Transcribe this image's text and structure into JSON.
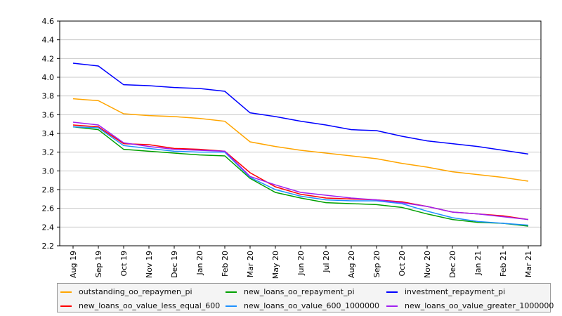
{
  "chart_data": {
    "type": "line",
    "title": "",
    "xlabel": "",
    "ylabel": "",
    "ylim": [
      2.2,
      4.6
    ],
    "yticks": [
      "2.2",
      "2.4",
      "2.6",
      "2.8",
      "3.0",
      "3.2",
      "3.4",
      "3.6",
      "3.8",
      "4.0",
      "4.2",
      "4.4",
      "4.6"
    ],
    "grid": true,
    "legend_position": "bottom",
    "categories": [
      "Aug 19",
      "Sep 19",
      "Oct 19",
      "Nov 19",
      "Dec 19",
      "Jan 20",
      "Feb 20",
      "Mar 20",
      "May 20",
      "Jun 20",
      "Jul 20",
      "Aug 20",
      "Sep 20",
      "Oct 20",
      "Nov 20",
      "Dec 20",
      "Jan 21",
      "Feb 21",
      "Mar 21"
    ],
    "series": [
      {
        "name": "outstanding_oo_repaymen_pi",
        "color": "#ffa500",
        "values": [
          3.77,
          3.75,
          3.61,
          3.59,
          3.58,
          3.56,
          3.53,
          3.31,
          3.26,
          3.22,
          3.19,
          3.16,
          3.13,
          3.08,
          3.04,
          2.99,
          2.96,
          2.93,
          2.89
        ]
      },
      {
        "name": "new_loans_oo_repayment_pi",
        "color": "#00a000",
        "values": [
          3.47,
          3.44,
          3.23,
          3.21,
          3.19,
          3.17,
          3.16,
          2.92,
          2.77,
          2.71,
          2.66,
          2.65,
          2.64,
          2.61,
          2.54,
          2.48,
          2.45,
          2.44,
          2.41
        ]
      },
      {
        "name": "investment_repayment_pi",
        "color": "#0000ff",
        "values": [
          4.15,
          4.12,
          3.92,
          3.91,
          3.89,
          3.88,
          3.85,
          3.62,
          3.58,
          3.53,
          3.49,
          3.44,
          3.43,
          3.37,
          3.32,
          3.29,
          3.26,
          3.22,
          3.18
        ]
      },
      {
        "name": "new_loans_oo_value_less_equal_600",
        "color": "#ff0000",
        "values": [
          3.49,
          3.47,
          3.29,
          3.28,
          3.24,
          3.23,
          3.21,
          2.98,
          2.83,
          2.75,
          2.71,
          2.7,
          2.69,
          2.67,
          2.62,
          2.56,
          2.54,
          2.52,
          2.48
        ]
      },
      {
        "name": "new_loans_oo_value_600_1000000",
        "color": "#1e90ff",
        "values": [
          3.47,
          3.46,
          3.27,
          3.24,
          3.21,
          3.2,
          3.2,
          2.93,
          2.8,
          2.73,
          2.69,
          2.68,
          2.68,
          2.65,
          2.57,
          2.5,
          2.46,
          2.44,
          2.42
        ]
      },
      {
        "name": "new_loans_oo_value_greater_1000000",
        "color": "#a020f0",
        "values": [
          3.52,
          3.49,
          3.3,
          3.26,
          3.23,
          3.22,
          3.21,
          2.94,
          2.85,
          2.77,
          2.74,
          2.71,
          2.69,
          2.66,
          2.62,
          2.56,
          2.54,
          2.51,
          2.48
        ]
      }
    ]
  }
}
